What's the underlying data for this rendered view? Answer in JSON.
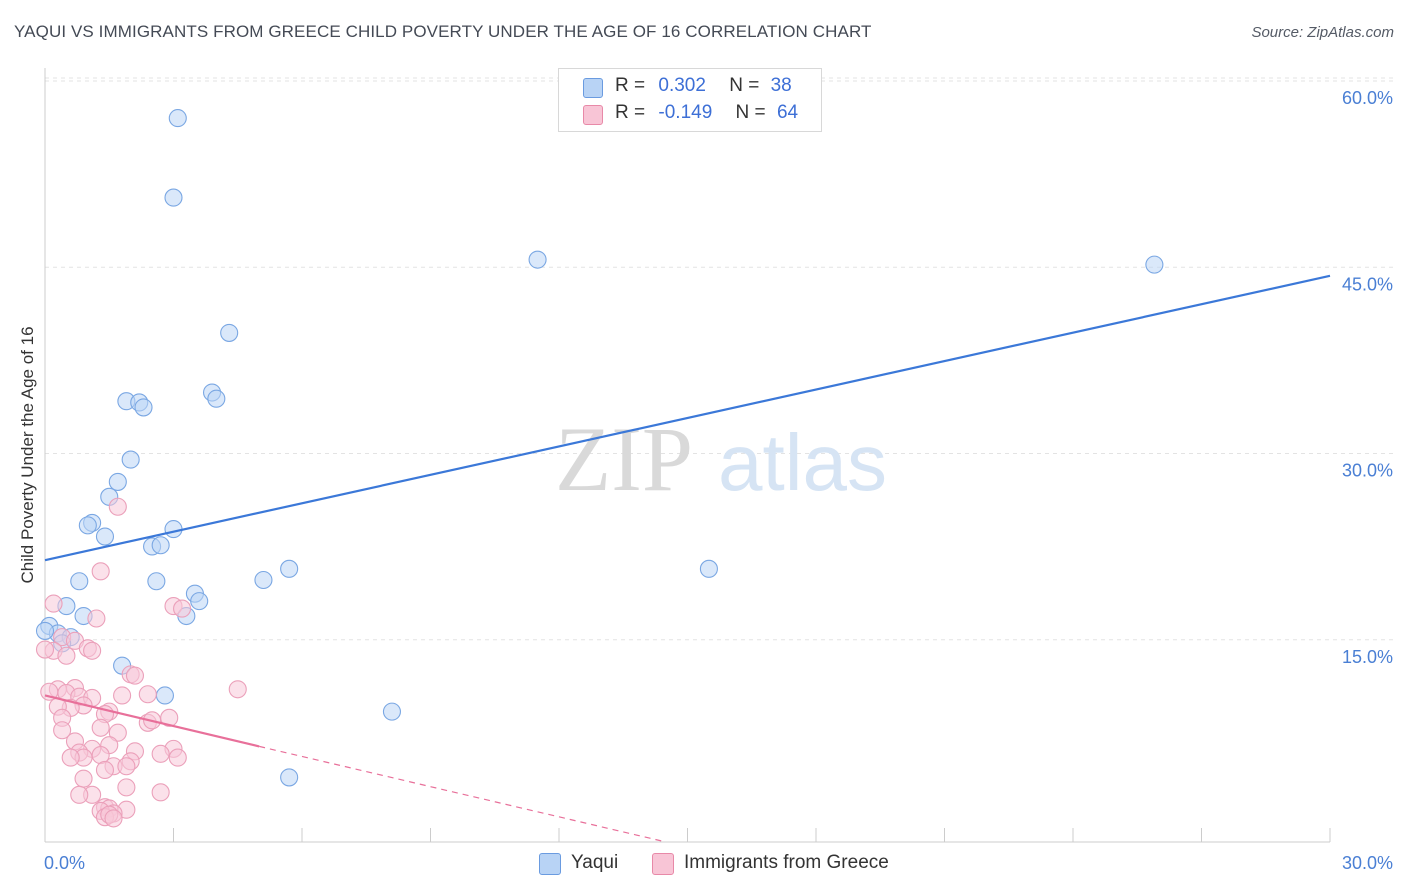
{
  "title": "YAQUI VS IMMIGRANTS FROM GREECE CHILD POVERTY UNDER THE AGE OF 16 CORRELATION CHART",
  "source": "Source: ZipAtlas.com",
  "watermark": {
    "zip": "ZIP",
    "atlas": "atlas"
  },
  "legend": {
    "r_label": "R =",
    "n_label": "N =",
    "series": [
      {
        "name": "Yaqui",
        "r": "0.302",
        "n": "38",
        "fill": "#b8d3f5",
        "stroke": "#6a9be0"
      },
      {
        "name": "Immigrants from Greece",
        "r": "-0.149",
        "n": "64",
        "fill": "#f8c5d6",
        "stroke": "#e889a8"
      }
    ]
  },
  "chart_data": {
    "type": "scatter",
    "xlabel": "",
    "ylabel": "Child Poverty Under the Age of 16",
    "xlim": [
      0,
      30
    ],
    "ylim": [
      0,
      60
    ],
    "x_ticks": [
      "0.0%",
      "30.0%"
    ],
    "y_ticks": [
      {
        "value": 15,
        "label": "15.0%"
      },
      {
        "value": 30,
        "label": "30.0%"
      },
      {
        "value": 45,
        "label": "45.0%"
      },
      {
        "value": 60,
        "label": "60.0%"
      }
    ],
    "grid": true,
    "series": [
      {
        "name": "Yaqui",
        "color": "#3b78d8",
        "fill": "#bcd5f5",
        "stroke": "#7aa7e3",
        "trend": {
          "x": [
            0,
            30
          ],
          "y": [
            22.7,
            45.6
          ],
          "dashed_to": null
        },
        "points": [
          [
            3.1,
            58.3
          ],
          [
            3.0,
            51.9
          ],
          [
            11.5,
            46.9
          ],
          [
            25.9,
            46.5
          ],
          [
            4.3,
            41.0
          ],
          [
            3.9,
            36.2
          ],
          [
            4.0,
            35.7
          ],
          [
            1.9,
            35.5
          ],
          [
            2.2,
            35.4
          ],
          [
            2.3,
            35.0
          ],
          [
            2.0,
            30.8
          ],
          [
            1.7,
            29.0
          ],
          [
            1.5,
            27.8
          ],
          [
            1.1,
            25.7
          ],
          [
            1.0,
            25.5
          ],
          [
            3.0,
            25.2
          ],
          [
            1.4,
            24.6
          ],
          [
            2.5,
            23.8
          ],
          [
            2.7,
            23.9
          ],
          [
            5.7,
            22.0
          ],
          [
            15.5,
            22.0
          ],
          [
            5.1,
            21.1
          ],
          [
            0.8,
            21.0
          ],
          [
            2.6,
            21.0
          ],
          [
            3.5,
            20.0
          ],
          [
            3.6,
            19.4
          ],
          [
            0.5,
            19.0
          ],
          [
            3.3,
            18.2
          ],
          [
            0.9,
            18.2
          ],
          [
            0.1,
            17.4
          ],
          [
            0.3,
            16.8
          ],
          [
            0.6,
            16.5
          ],
          [
            0.4,
            16.0
          ],
          [
            1.8,
            14.2
          ],
          [
            2.8,
            11.8
          ],
          [
            8.1,
            10.5
          ],
          [
            5.7,
            5.2
          ],
          [
            0.0,
            17.0
          ]
        ]
      },
      {
        "name": "Immigrants from Greece",
        "color": "#e8709a",
        "fill": "#f8c9d9",
        "stroke": "#eba0ba",
        "trend": {
          "x": [
            0,
            5.0
          ],
          "y": [
            11.8,
            7.7
          ],
          "dashed_to": [
            14.5,
            0
          ]
        },
        "points": [
          [
            1.7,
            27.0
          ],
          [
            1.3,
            21.8
          ],
          [
            0.2,
            19.2
          ],
          [
            3.0,
            19.0
          ],
          [
            3.2,
            18.8
          ],
          [
            1.2,
            18.0
          ],
          [
            0.4,
            16.5
          ],
          [
            0.7,
            16.2
          ],
          [
            1.0,
            15.6
          ],
          [
            1.1,
            15.4
          ],
          [
            0.2,
            15.4
          ],
          [
            0.5,
            15.0
          ],
          [
            0.0,
            15.5
          ],
          [
            2.0,
            13.5
          ],
          [
            2.1,
            13.4
          ],
          [
            4.5,
            12.3
          ],
          [
            0.3,
            12.3
          ],
          [
            0.7,
            12.4
          ],
          [
            0.1,
            12.1
          ],
          [
            0.5,
            12.0
          ],
          [
            0.8,
            11.7
          ],
          [
            1.8,
            11.8
          ],
          [
            2.4,
            11.9
          ],
          [
            1.1,
            11.6
          ],
          [
            0.9,
            11.0
          ],
          [
            0.6,
            10.8
          ],
          [
            0.3,
            10.9
          ],
          [
            1.5,
            10.5
          ],
          [
            1.4,
            10.3
          ],
          [
            0.4,
            10.0
          ],
          [
            2.9,
            10.0
          ],
          [
            2.4,
            9.6
          ],
          [
            2.5,
            9.8
          ],
          [
            1.3,
            9.2
          ],
          [
            0.4,
            9.0
          ],
          [
            1.7,
            8.8
          ],
          [
            0.7,
            8.1
          ],
          [
            1.5,
            7.8
          ],
          [
            1.1,
            7.5
          ],
          [
            2.1,
            7.3
          ],
          [
            3.0,
            7.5
          ],
          [
            2.7,
            7.1
          ],
          [
            0.8,
            7.2
          ],
          [
            1.3,
            7.0
          ],
          [
            0.9,
            6.8
          ],
          [
            0.6,
            6.8
          ],
          [
            3.1,
            6.8
          ],
          [
            2.0,
            6.5
          ],
          [
            1.6,
            6.1
          ],
          [
            1.9,
            6.1
          ],
          [
            1.4,
            5.8
          ],
          [
            0.9,
            5.1
          ],
          [
            1.9,
            4.4
          ],
          [
            1.1,
            3.8
          ],
          [
            0.8,
            3.8
          ],
          [
            2.7,
            4.0
          ],
          [
            1.4,
            2.8
          ],
          [
            1.5,
            2.7
          ],
          [
            1.9,
            2.6
          ],
          [
            1.6,
            2.3
          ],
          [
            1.3,
            2.5
          ],
          [
            1.4,
            2.0
          ],
          [
            1.5,
            2.2
          ],
          [
            1.6,
            1.9
          ]
        ]
      }
    ]
  }
}
